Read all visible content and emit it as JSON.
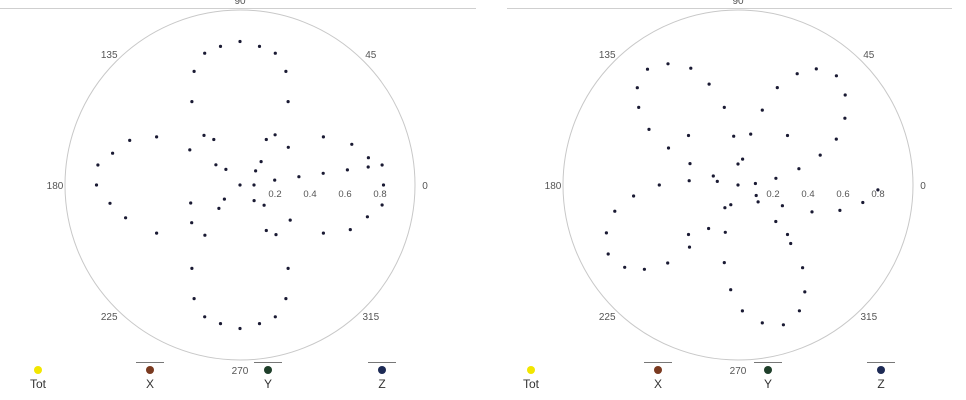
{
  "chart_data": [
    {
      "type": "scatter",
      "projection": "polar",
      "angle_ticks": [
        "0",
        "45",
        "90",
        "135",
        "180",
        "225",
        "270",
        "315"
      ],
      "radial_ticks": [
        "0.2",
        "0.4",
        "0.6",
        "0.8"
      ],
      "rlim": [
        0,
        1
      ],
      "grid": false,
      "legend": {
        "placement": "bottom",
        "entries": [
          "Tot",
          "X",
          "Y",
          "Z"
        ]
      },
      "series": [
        {
          "name": "Z",
          "color": "#1a1a33",
          "points_theta_r": [
            [
              0,
              0
            ],
            [
              0,
              0.08
            ],
            [
              8,
              0.2
            ],
            [
              8,
              0.34
            ],
            [
              8,
              0.48
            ],
            [
              8,
              0.62
            ],
            [
              8,
              0.74
            ],
            [
              8,
              0.82
            ],
            [
              0,
              0.82
            ],
            [
              12,
              0.75
            ],
            [
              20,
              0.68
            ],
            [
              30,
              0.55
            ],
            [
              38,
              0.35
            ],
            [
              42,
              0.12
            ],
            [
              48,
              0.18
            ],
            [
              55,
              0.35
            ],
            [
              60,
              0.55
            ],
            [
              68,
              0.7
            ],
            [
              75,
              0.78
            ],
            [
              82,
              0.8
            ],
            [
              90,
              0.82
            ],
            [
              98,
              0.8
            ],
            [
              105,
              0.78
            ],
            [
              112,
              0.7
            ],
            [
              120,
              0.55
            ],
            [
              126,
              0.35
            ],
            [
              132,
              0.12
            ],
            [
              140,
              0.18
            ],
            [
              145,
              0.35
            ],
            [
              150,
              0.55
            ],
            [
              158,
              0.68
            ],
            [
              166,
              0.75
            ],
            [
              172,
              0.82
            ],
            [
              180,
              0.82
            ],
            [
              188,
              0.75
            ],
            [
              196,
              0.68
            ],
            [
              210,
              0.55
            ],
            [
              218,
              0.35
            ],
            [
              222,
              0.12
            ],
            [
              228,
              0.18
            ],
            [
              235,
              0.35
            ],
            [
              240,
              0.55
            ],
            [
              248,
              0.7
            ],
            [
              255,
              0.78
            ],
            [
              262,
              0.8
            ],
            [
              270,
              0.82
            ],
            [
              278,
              0.8
            ],
            [
              285,
              0.78
            ],
            [
              292,
              0.7
            ],
            [
              300,
              0.55
            ],
            [
              306,
              0.35
            ],
            [
              312,
              0.12
            ],
            [
              320,
              0.18
            ],
            [
              325,
              0.35
            ],
            [
              330,
              0.55
            ],
            [
              338,
              0.68
            ],
            [
              346,
              0.75
            ],
            [
              352,
              0.82
            ],
            [
              60,
              0.3
            ],
            [
              120,
              0.3
            ],
            [
              200,
              0.3
            ],
            [
              300,
              0.3
            ]
          ]
        }
      ]
    },
    {
      "type": "scatter",
      "projection": "polar",
      "angle_ticks": [
        "0",
        "45",
        "90",
        "135",
        "180",
        "225",
        "270",
        "315"
      ],
      "radial_ticks": [
        "0.2",
        "0.4",
        "0.6",
        "0.8"
      ],
      "rlim": [
        0,
        1
      ],
      "grid": false,
      "legend": {
        "placement": "bottom",
        "entries": [
          "Tot",
          "X",
          "Y",
          "Z"
        ]
      },
      "series": [
        {
          "name": "Z",
          "color": "#1a1a33",
          "points_theta_r": [
            [
              0,
              0
            ],
            [
              5,
              0.1
            ],
            [
              10,
              0.22
            ],
            [
              15,
              0.36
            ],
            [
              20,
              0.5
            ],
            [
              25,
              0.62
            ],
            [
              32,
              0.72
            ],
            [
              40,
              0.8
            ],
            [
              48,
              0.84
            ],
            [
              56,
              0.8
            ],
            [
              62,
              0.72
            ],
            [
              68,
              0.6
            ],
            [
              72,
              0.45
            ],
            [
              76,
              0.3
            ],
            [
              80,
              0.15
            ],
            [
              90,
              0.12
            ],
            [
              95,
              0.28
            ],
            [
              100,
              0.45
            ],
            [
              106,
              0.6
            ],
            [
              112,
              0.72
            ],
            [
              120,
              0.8
            ],
            [
              128,
              0.84
            ],
            [
              136,
              0.8
            ],
            [
              142,
              0.72
            ],
            [
              148,
              0.6
            ],
            [
              152,
              0.45
            ],
            [
              156,
              0.3
            ],
            [
              160,
              0.15
            ],
            [
              170,
              0.12
            ],
            [
              175,
              0.28
            ],
            [
              180,
              0.45
            ],
            [
              186,
              0.6
            ],
            [
              192,
              0.72
            ],
            [
              200,
              0.8
            ],
            [
              208,
              0.84
            ],
            [
              216,
              0.8
            ],
            [
              222,
              0.72
            ],
            [
              228,
              0.6
            ],
            [
              232,
              0.45
            ],
            [
              236,
              0.3
            ],
            [
              240,
              0.15
            ],
            [
              250,
              0.12
            ],
            [
              255,
              0.28
            ],
            [
              260,
              0.45
            ],
            [
              266,
              0.6
            ],
            [
              272,
              0.72
            ],
            [
              280,
              0.8
            ],
            [
              288,
              0.84
            ],
            [
              296,
              0.8
            ],
            [
              302,
              0.72
            ],
            [
              308,
              0.6
            ],
            [
              312,
              0.45
            ],
            [
              316,
              0.3
            ],
            [
              320,
              0.15
            ],
            [
              330,
              0.12
            ],
            [
              335,
              0.28
            ],
            [
              340,
              0.45
            ],
            [
              346,
              0.6
            ],
            [
              352,
              0.72
            ],
            [
              358,
              0.8
            ],
            [
              45,
              0.4
            ],
            [
              135,
              0.4
            ],
            [
              225,
              0.4
            ],
            [
              315,
              0.4
            ]
          ]
        }
      ]
    }
  ],
  "legend_items": [
    {
      "label": "Tot",
      "color": "#f2e600"
    },
    {
      "label": "X",
      "color": "#7a3a20"
    },
    {
      "label": "Y",
      "color": "#1f3f2a"
    },
    {
      "label": "Z",
      "color": "#1d2a55"
    }
  ]
}
